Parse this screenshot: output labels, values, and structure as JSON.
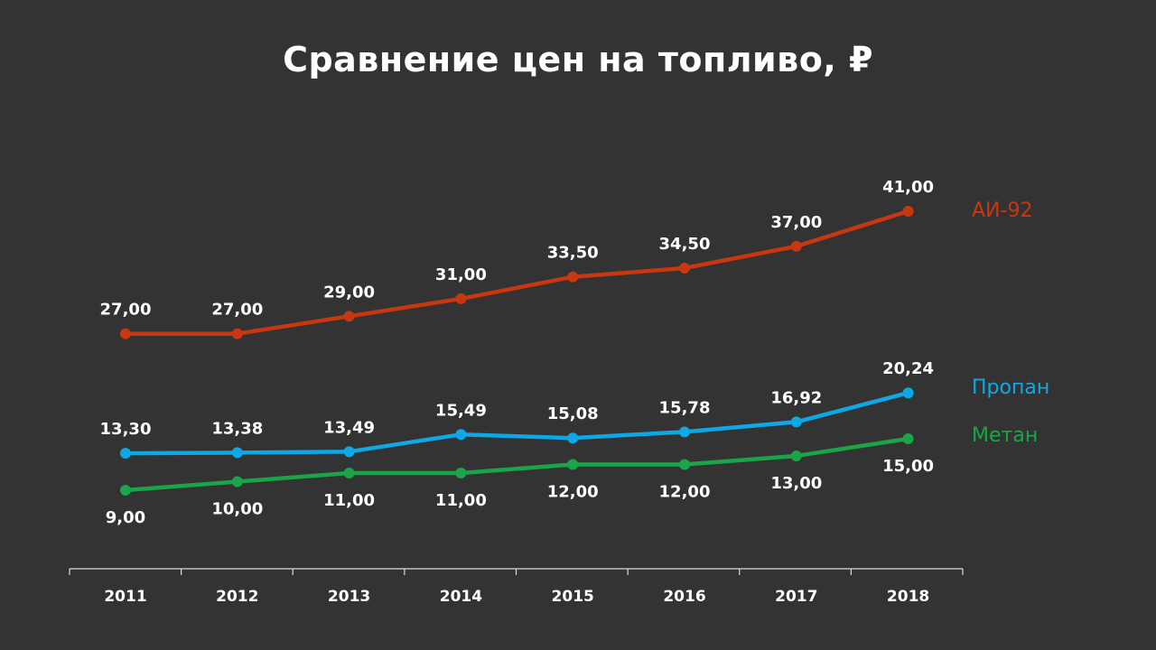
{
  "chart_data": {
    "type": "line",
    "title": "Сравнение цен на топливо, ₽",
    "categories": [
      "2011",
      "2012",
      "2013",
      "2014",
      "2015",
      "2016",
      "2017",
      "2018"
    ],
    "series": [
      {
        "name": "АИ-92",
        "color": "#c8370f",
        "values": [
          27.0,
          27.0,
          29.0,
          31.0,
          33.5,
          34.5,
          37.0,
          41.0
        ],
        "labels": [
          "27,00",
          "27,00",
          "29,00",
          "31,00",
          "33,50",
          "34,50",
          "37,00",
          "41,00"
        ],
        "label_position": "above"
      },
      {
        "name": "Пропан",
        "color": "#0fa8e6",
        "values": [
          13.3,
          13.38,
          13.49,
          15.49,
          15.08,
          15.78,
          16.92,
          20.24
        ],
        "labels": [
          "13,30",
          "13,38",
          "13,49",
          "15,49",
          "15,08",
          "15,78",
          "16,92",
          "20,24"
        ],
        "label_position": "above"
      },
      {
        "name": "Метан",
        "color": "#1aa548",
        "values": [
          9.0,
          10.0,
          11.0,
          11.0,
          12.0,
          12.0,
          13.0,
          15.0
        ],
        "labels": [
          "9,00",
          "10,00",
          "11,00",
          "11,00",
          "12,00",
          "12,00",
          "13,00",
          "15,00"
        ],
        "label_position": "below"
      }
    ],
    "legend": "right, next to line ends",
    "grid": false,
    "background": "#333333",
    "axis_color": "#dddddd"
  }
}
